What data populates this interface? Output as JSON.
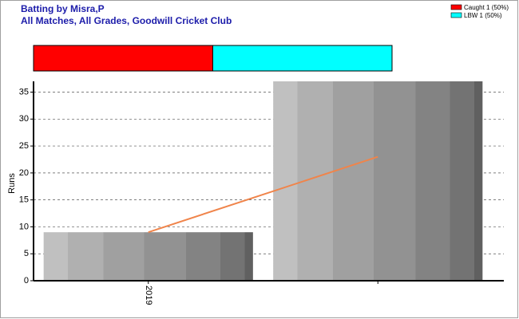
{
  "chart_data": {
    "type": "bar",
    "title": "Batting by Misra,P",
    "subtitle": "All Matches, All Grades, Goodwill Cricket Club",
    "y_label": "Runs",
    "categories": [
      "2019",
      null
    ],
    "values": [
      9,
      37
    ],
    "line_values": [
      9,
      23
    ],
    "line_color": "#f0844a",
    "ylim": [
      0,
      37
    ],
    "yticks": [
      0,
      5,
      10,
      15,
      20,
      25,
      30,
      35
    ],
    "grid": true,
    "breakdown": [
      {
        "label": "Caught 1 (50%)",
        "value": 50,
        "color": "#ff0000"
      },
      {
        "label": "LBW 1 (50%)",
        "value": 50,
        "color": "#00ffff"
      }
    ]
  }
}
